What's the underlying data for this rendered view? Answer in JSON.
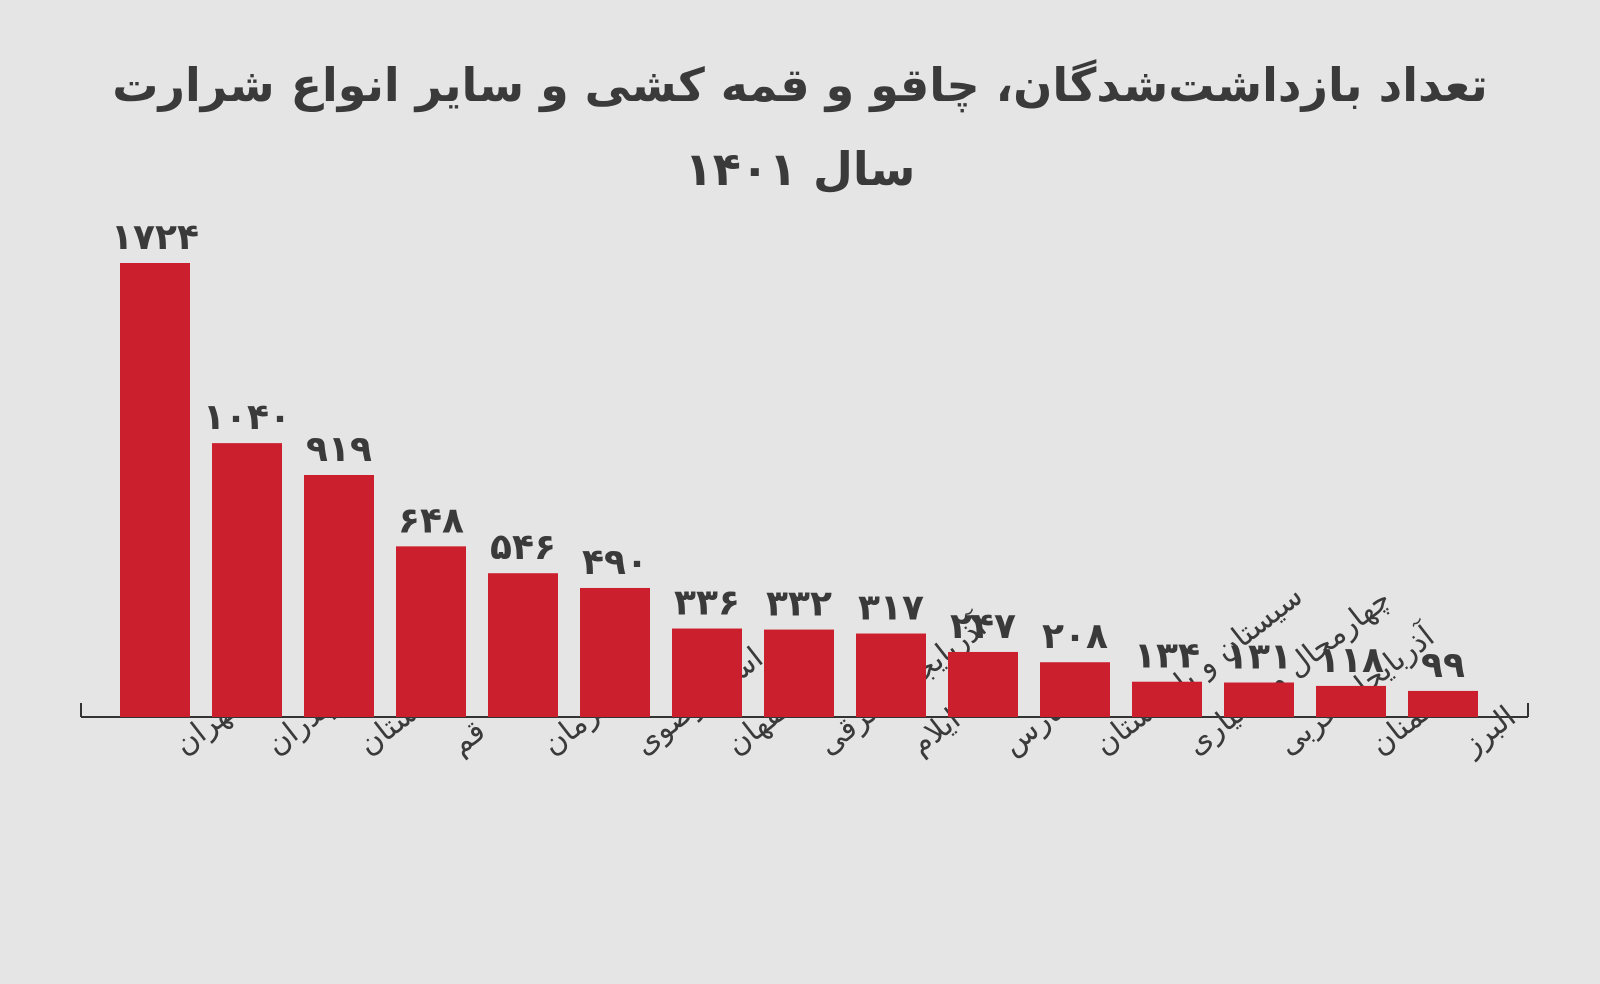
{
  "chart_data": {
    "type": "bar",
    "title": "تعداد بازداشت‌شدگان، چاقو و قمه کشی و سایر انواع شرارت",
    "subtitle": "سال ۱۴۰۱",
    "categories": [
      "تهران",
      "مازندران",
      "گلستان",
      "قم",
      "کرمان",
      "خراسان رضوی",
      "اصفهان",
      "آذربایجان شرقی",
      "ایلام",
      "فارس",
      "سیستان و بلوچستان",
      "چهارمحال و بختیاری",
      "آذربایجان غربی",
      "سمنان",
      "البرز"
    ],
    "values": [
      1724,
      1040,
      919,
      648,
      546,
      490,
      336,
      332,
      317,
      247,
      208,
      134,
      131,
      118,
      99
    ],
    "value_labels": [
      "۱۷۲۴",
      "۱۰۴۰",
      "۹۱۹",
      "۶۴۸",
      "۵۴۶",
      "۴۹۰",
      "۳۳۶",
      "۳۳۲",
      "۳۱۷",
      "۲۴۷",
      "۲۰۸",
      "۱۳۴",
      "۱۳۱",
      "۱۱۸",
      "۹۹"
    ],
    "ylim": [
      0,
      1724
    ],
    "grid": false,
    "legend": "none",
    "bar_color": "#cc1f2d",
    "axis_color": "#333333",
    "text_color": "#3a3a3a",
    "background": "#e5e5e5"
  }
}
